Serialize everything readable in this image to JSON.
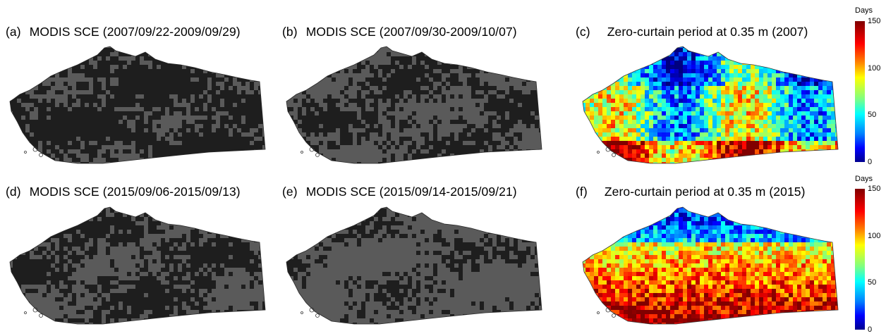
{
  "panels": [
    {
      "label": "(a)",
      "title": "MODIS SCE (2007/09/22-2009/09/29)",
      "kind": "sce",
      "fill": 0.25
    },
    {
      "label": "(b)",
      "title": "MODIS SCE (2007/09/30-2009/10/07)",
      "kind": "sce",
      "fill": 0.55
    },
    {
      "label": "(c)",
      "title": "Zero-curtain period at 0.35 m (2007)",
      "kind": "zcp",
      "year": "2007"
    },
    {
      "label": "(d)",
      "title": "MODIS SCE (2015/09/06-2015/09/13)",
      "kind": "sce",
      "fill": 0.45
    },
    {
      "label": "(e)",
      "title": "MODIS SCE (2015/09/14-2015/09/21)",
      "kind": "sce",
      "fill": 0.75
    },
    {
      "label": "(f)",
      "title": "Zero-curtain period at 0.35 m (2015)",
      "kind": "zcp",
      "year": "2015"
    }
  ],
  "colorbars": [
    {
      "unit": "Days",
      "ticks": [
        "150",
        "100",
        "50",
        "0"
      ],
      "range": [
        0,
        150
      ]
    },
    {
      "unit": "Days",
      "ticks": [
        "150",
        "100",
        "50",
        "0"
      ],
      "range": [
        0,
        150
      ]
    }
  ],
  "colors": {
    "snow_free": "#1e1e1e",
    "snow": "#5a5a5a",
    "colormap": "jet"
  }
}
